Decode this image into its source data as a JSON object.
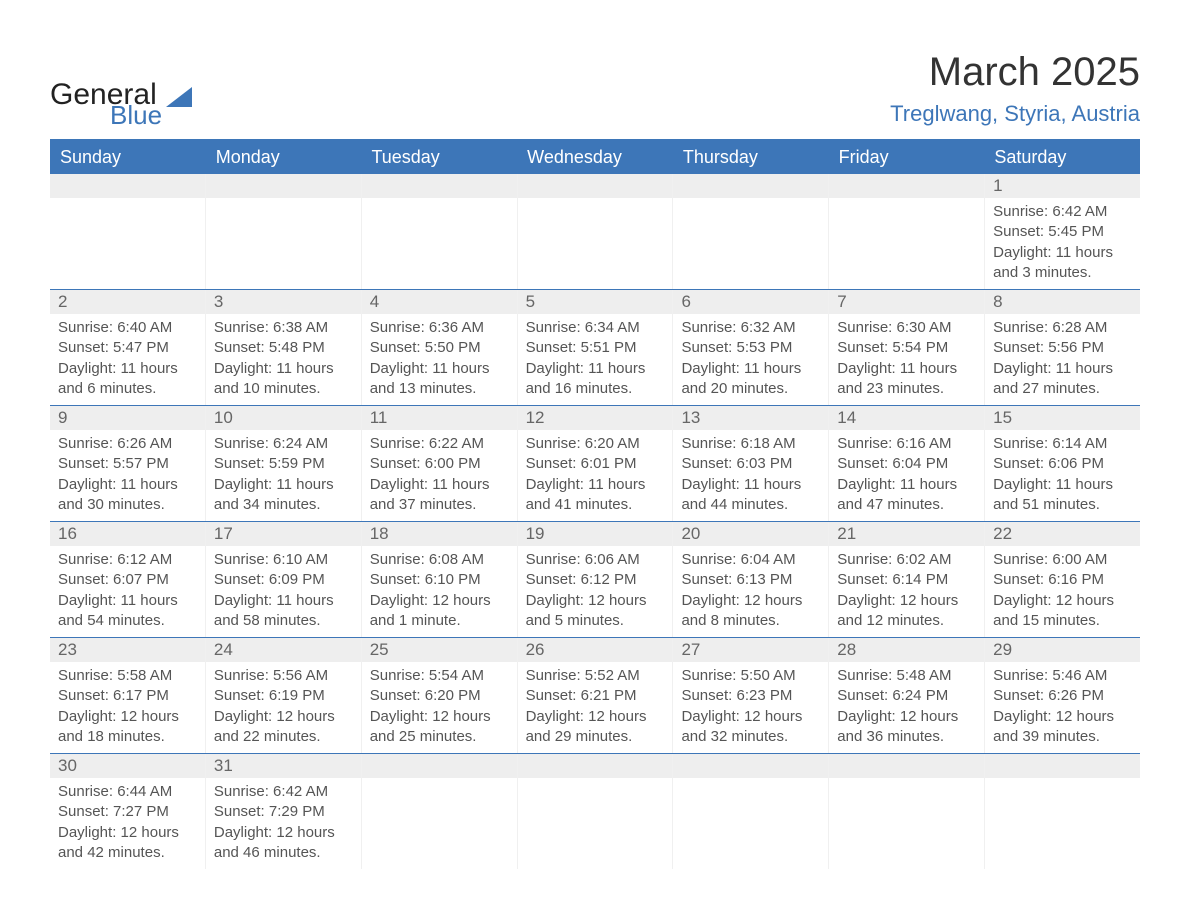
{
  "logo": {
    "text1": "General",
    "text2": "Blue",
    "shape_color": "#3d76b8"
  },
  "title": "March 2025",
  "location": "Treglwang, Styria, Austria",
  "colors": {
    "header_bg": "#3d76b8",
    "header_text": "#ffffff",
    "daynum_bg": "#eeeeee",
    "daynum_text": "#666666",
    "body_text": "#555555",
    "row_divider": "#3d76b8"
  },
  "day_labels": [
    "Sunday",
    "Monday",
    "Tuesday",
    "Wednesday",
    "Thursday",
    "Friday",
    "Saturday"
  ],
  "weeks": [
    [
      {
        "blank": true
      },
      {
        "blank": true
      },
      {
        "blank": true
      },
      {
        "blank": true
      },
      {
        "blank": true
      },
      {
        "blank": true
      },
      {
        "n": 1,
        "sunrise": "6:42 AM",
        "sunset": "5:45 PM",
        "daylight": "11 hours and 3 minutes."
      }
    ],
    [
      {
        "n": 2,
        "sunrise": "6:40 AM",
        "sunset": "5:47 PM",
        "daylight": "11 hours and 6 minutes."
      },
      {
        "n": 3,
        "sunrise": "6:38 AM",
        "sunset": "5:48 PM",
        "daylight": "11 hours and 10 minutes."
      },
      {
        "n": 4,
        "sunrise": "6:36 AM",
        "sunset": "5:50 PM",
        "daylight": "11 hours and 13 minutes."
      },
      {
        "n": 5,
        "sunrise": "6:34 AM",
        "sunset": "5:51 PM",
        "daylight": "11 hours and 16 minutes."
      },
      {
        "n": 6,
        "sunrise": "6:32 AM",
        "sunset": "5:53 PM",
        "daylight": "11 hours and 20 minutes."
      },
      {
        "n": 7,
        "sunrise": "6:30 AM",
        "sunset": "5:54 PM",
        "daylight": "11 hours and 23 minutes."
      },
      {
        "n": 8,
        "sunrise": "6:28 AM",
        "sunset": "5:56 PM",
        "daylight": "11 hours and 27 minutes."
      }
    ],
    [
      {
        "n": 9,
        "sunrise": "6:26 AM",
        "sunset": "5:57 PM",
        "daylight": "11 hours and 30 minutes."
      },
      {
        "n": 10,
        "sunrise": "6:24 AM",
        "sunset": "5:59 PM",
        "daylight": "11 hours and 34 minutes."
      },
      {
        "n": 11,
        "sunrise": "6:22 AM",
        "sunset": "6:00 PM",
        "daylight": "11 hours and 37 minutes."
      },
      {
        "n": 12,
        "sunrise": "6:20 AM",
        "sunset": "6:01 PM",
        "daylight": "11 hours and 41 minutes."
      },
      {
        "n": 13,
        "sunrise": "6:18 AM",
        "sunset": "6:03 PM",
        "daylight": "11 hours and 44 minutes."
      },
      {
        "n": 14,
        "sunrise": "6:16 AM",
        "sunset": "6:04 PM",
        "daylight": "11 hours and 47 minutes."
      },
      {
        "n": 15,
        "sunrise": "6:14 AM",
        "sunset": "6:06 PM",
        "daylight": "11 hours and 51 minutes."
      }
    ],
    [
      {
        "n": 16,
        "sunrise": "6:12 AM",
        "sunset": "6:07 PM",
        "daylight": "11 hours and 54 minutes."
      },
      {
        "n": 17,
        "sunrise": "6:10 AM",
        "sunset": "6:09 PM",
        "daylight": "11 hours and 58 minutes."
      },
      {
        "n": 18,
        "sunrise": "6:08 AM",
        "sunset": "6:10 PM",
        "daylight": "12 hours and 1 minute."
      },
      {
        "n": 19,
        "sunrise": "6:06 AM",
        "sunset": "6:12 PM",
        "daylight": "12 hours and 5 minutes."
      },
      {
        "n": 20,
        "sunrise": "6:04 AM",
        "sunset": "6:13 PM",
        "daylight": "12 hours and 8 minutes."
      },
      {
        "n": 21,
        "sunrise": "6:02 AM",
        "sunset": "6:14 PM",
        "daylight": "12 hours and 12 minutes."
      },
      {
        "n": 22,
        "sunrise": "6:00 AM",
        "sunset": "6:16 PM",
        "daylight": "12 hours and 15 minutes."
      }
    ],
    [
      {
        "n": 23,
        "sunrise": "5:58 AM",
        "sunset": "6:17 PM",
        "daylight": "12 hours and 18 minutes."
      },
      {
        "n": 24,
        "sunrise": "5:56 AM",
        "sunset": "6:19 PM",
        "daylight": "12 hours and 22 minutes."
      },
      {
        "n": 25,
        "sunrise": "5:54 AM",
        "sunset": "6:20 PM",
        "daylight": "12 hours and 25 minutes."
      },
      {
        "n": 26,
        "sunrise": "5:52 AM",
        "sunset": "6:21 PM",
        "daylight": "12 hours and 29 minutes."
      },
      {
        "n": 27,
        "sunrise": "5:50 AM",
        "sunset": "6:23 PM",
        "daylight": "12 hours and 32 minutes."
      },
      {
        "n": 28,
        "sunrise": "5:48 AM",
        "sunset": "6:24 PM",
        "daylight": "12 hours and 36 minutes."
      },
      {
        "n": 29,
        "sunrise": "5:46 AM",
        "sunset": "6:26 PM",
        "daylight": "12 hours and 39 minutes."
      }
    ],
    [
      {
        "n": 30,
        "sunrise": "6:44 AM",
        "sunset": "7:27 PM",
        "daylight": "12 hours and 42 minutes."
      },
      {
        "n": 31,
        "sunrise": "6:42 AM",
        "sunset": "7:29 PM",
        "daylight": "12 hours and 46 minutes."
      },
      {
        "blank": true
      },
      {
        "blank": true
      },
      {
        "blank": true
      },
      {
        "blank": true
      },
      {
        "blank": true
      }
    ]
  ],
  "labels": {
    "sunrise": "Sunrise:",
    "sunset": "Sunset:",
    "daylight": "Daylight:"
  }
}
